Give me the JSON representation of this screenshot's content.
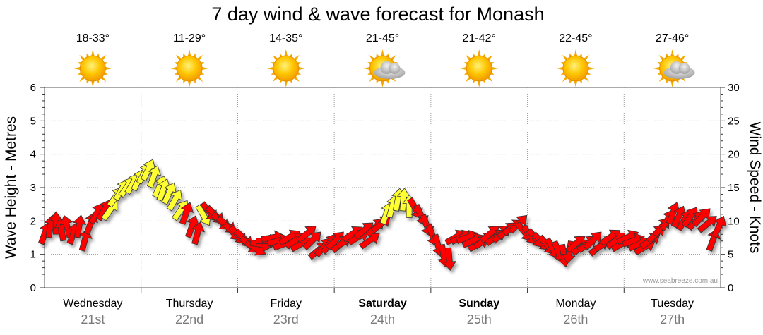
{
  "chart_data": {
    "type": "scatter",
    "title": "7 day wind & wave forecast for Monash",
    "ylabel_left": "Wave Height - Metres",
    "ylabel_right": "Wind Speed - Knots",
    "ylim_left": [
      0,
      6
    ],
    "ylim_right": [
      0,
      30
    ],
    "yticks_left": [
      "0",
      "1",
      "2",
      "3",
      "4",
      "5",
      "6"
    ],
    "yticks_right": [
      "0",
      "5",
      "10",
      "15",
      "20",
      "25",
      "30"
    ],
    "grid": true,
    "credit": "www.seabreeze.com.au",
    "days": [
      {
        "name": "Wednesday",
        "date": "21st",
        "temp": "18-33°",
        "icon": "sun-icon",
        "bold": false
      },
      {
        "name": "Thursday",
        "date": "22nd",
        "temp": "11-29°",
        "icon": "sun-icon",
        "bold": false
      },
      {
        "name": "Friday",
        "date": "23rd",
        "temp": "14-35°",
        "icon": "sun-icon",
        "bold": false
      },
      {
        "name": "Saturday",
        "date": "24th",
        "temp": "21-45°",
        "icon": "sun-cloud-icon",
        "bold": true
      },
      {
        "name": "Sunday",
        "date": "25th",
        "temp": "21-42°",
        "icon": "sun-icon",
        "bold": true
      },
      {
        "name": "Monday",
        "date": "26th",
        "temp": "22-45°",
        "icon": "sun-icon",
        "bold": false
      },
      {
        "name": "Tuesday",
        "date": "27th",
        "temp": "27-46°",
        "icon": "sun-cloud-icon",
        "bold": false
      }
    ],
    "series": [
      {
        "colors": {
          "low": "#ff0000",
          "high": "#ffff33"
        },
        "points": [
          {
            "t": 0.0,
            "v": 1.6,
            "dir": 200,
            "c": "low"
          },
          {
            "t": 0.15,
            "v": 1.8,
            "dir": 190,
            "c": "low"
          },
          {
            "t": 0.3,
            "v": 1.9,
            "dir": 180,
            "c": "low"
          },
          {
            "t": 0.45,
            "v": 1.7,
            "dir": 170,
            "c": "low"
          },
          {
            "t": 0.6,
            "v": 1.8,
            "dir": 165,
            "c": "low"
          },
          {
            "t": 0.75,
            "v": 1.6,
            "dir": 200,
            "c": "low"
          },
          {
            "t": 0.9,
            "v": 1.8,
            "dir": 190,
            "c": "low"
          },
          {
            "t": 1.05,
            "v": 1.4,
            "dir": 195,
            "c": "low"
          },
          {
            "t": 1.2,
            "v": 1.9,
            "dir": 200,
            "c": "low"
          },
          {
            "t": 1.35,
            "v": 2.2,
            "dir": 210,
            "c": "low"
          },
          {
            "t": 1.55,
            "v": 2.3,
            "dir": 210,
            "c": "low"
          },
          {
            "t": 1.7,
            "v": 2.3,
            "dir": 215,
            "c": "high"
          },
          {
            "t": 1.85,
            "v": 2.7,
            "dir": 215,
            "c": "high"
          },
          {
            "t": 2.0,
            "v": 2.9,
            "dir": 210,
            "c": "high"
          },
          {
            "t": 2.15,
            "v": 3.0,
            "dir": 215,
            "c": "high"
          },
          {
            "t": 2.3,
            "v": 3.1,
            "dir": 210,
            "c": "high"
          },
          {
            "t": 2.45,
            "v": 3.2,
            "dir": 205,
            "c": "high"
          },
          {
            "t": 2.6,
            "v": 3.4,
            "dir": 210,
            "c": "high"
          },
          {
            "t": 2.7,
            "v": 3.5,
            "dir": 205,
            "c": "high"
          },
          {
            "t": 2.85,
            "v": 3.3,
            "dir": 200,
            "c": "high"
          },
          {
            "t": 3.0,
            "v": 3.0,
            "dir": 205,
            "c": "high"
          },
          {
            "t": 3.1,
            "v": 2.9,
            "dir": 200,
            "c": "high"
          },
          {
            "t": 3.25,
            "v": 2.8,
            "dir": 205,
            "c": "high"
          },
          {
            "t": 3.4,
            "v": 2.6,
            "dir": 210,
            "c": "high"
          },
          {
            "t": 3.55,
            "v": 2.3,
            "dir": 215,
            "c": "high"
          },
          {
            "t": 3.7,
            "v": 2.2,
            "dir": 200,
            "c": "low"
          },
          {
            "t": 3.85,
            "v": 1.8,
            "dir": 200,
            "c": "low"
          },
          {
            "t": 4.0,
            "v": 1.6,
            "dir": 195,
            "c": "low"
          },
          {
            "t": 4.15,
            "v": 2.2,
            "dir": 330,
            "c": "high"
          },
          {
            "t": 4.3,
            "v": 2.3,
            "dir": 320,
            "c": "low"
          },
          {
            "t": 4.45,
            "v": 2.2,
            "dir": 315,
            "c": "low"
          },
          {
            "t": 4.6,
            "v": 2.0,
            "dir": 310,
            "c": "low"
          },
          {
            "t": 4.75,
            "v": 1.9,
            "dir": 310,
            "c": "low"
          },
          {
            "t": 4.9,
            "v": 1.7,
            "dir": 315,
            "c": "low"
          },
          {
            "t": 5.05,
            "v": 1.6,
            "dir": 320,
            "c": "low"
          },
          {
            "t": 5.2,
            "v": 1.5,
            "dir": 315,
            "c": "low"
          },
          {
            "t": 5.35,
            "v": 1.3,
            "dir": 310,
            "c": "low"
          },
          {
            "t": 5.5,
            "v": 1.2,
            "dir": 300,
            "c": "low"
          },
          {
            "t": 5.65,
            "v": 1.3,
            "dir": 280,
            "c": "low"
          },
          {
            "t": 5.8,
            "v": 1.4,
            "dir": 270,
            "c": "low"
          },
          {
            "t": 5.95,
            "v": 1.5,
            "dir": 260,
            "c": "low"
          },
          {
            "t": 6.1,
            "v": 1.4,
            "dir": 255,
            "c": "low"
          },
          {
            "t": 6.25,
            "v": 1.3,
            "dir": 250,
            "c": "low"
          },
          {
            "t": 6.4,
            "v": 1.5,
            "dir": 240,
            "c": "low"
          },
          {
            "t": 6.55,
            "v": 1.4,
            "dir": 235,
            "c": "low"
          },
          {
            "t": 6.7,
            "v": 1.3,
            "dir": 240,
            "c": "low"
          },
          {
            "t": 6.85,
            "v": 1.6,
            "dir": 230,
            "c": "low"
          },
          {
            "t": 7.0,
            "v": 1.4,
            "dir": 225,
            "c": "low"
          },
          {
            "t": 7.15,
            "v": 1.1,
            "dir": 230,
            "c": "low"
          },
          {
            "t": 7.3,
            "v": 1.2,
            "dir": 220,
            "c": "low"
          },
          {
            "t": 7.45,
            "v": 1.3,
            "dir": 215,
            "c": "low"
          },
          {
            "t": 7.6,
            "v": 1.4,
            "dir": 225,
            "c": "low"
          },
          {
            "t": 7.75,
            "v": 1.3,
            "dir": 230,
            "c": "low"
          },
          {
            "t": 7.9,
            "v": 1.4,
            "dir": 240,
            "c": "low"
          },
          {
            "t": 8.05,
            "v": 1.6,
            "dir": 235,
            "c": "low"
          },
          {
            "t": 8.2,
            "v": 1.5,
            "dir": 240,
            "c": "low"
          },
          {
            "t": 8.35,
            "v": 1.7,
            "dir": 230,
            "c": "low"
          },
          {
            "t": 8.5,
            "v": 1.4,
            "dir": 235,
            "c": "low"
          },
          {
            "t": 8.65,
            "v": 1.8,
            "dir": 225,
            "c": "low"
          },
          {
            "t": 8.8,
            "v": 1.9,
            "dir": 230,
            "c": "low"
          },
          {
            "t": 8.95,
            "v": 2.2,
            "dir": 200,
            "c": "high"
          },
          {
            "t": 9.1,
            "v": 2.4,
            "dir": 195,
            "c": "high"
          },
          {
            "t": 9.25,
            "v": 2.6,
            "dir": 190,
            "c": "high"
          },
          {
            "t": 9.4,
            "v": 2.6,
            "dir": 185,
            "c": "high"
          },
          {
            "t": 9.55,
            "v": 2.4,
            "dir": 180,
            "c": "high"
          },
          {
            "t": 9.7,
            "v": 2.4,
            "dir": 330,
            "c": "low"
          },
          {
            "t": 9.85,
            "v": 2.2,
            "dir": 335,
            "c": "low"
          },
          {
            "t": 10.0,
            "v": 1.9,
            "dir": 340,
            "c": "low"
          },
          {
            "t": 10.15,
            "v": 1.6,
            "dir": 340,
            "c": "low"
          },
          {
            "t": 10.3,
            "v": 1.3,
            "dir": 345,
            "c": "low"
          },
          {
            "t": 10.45,
            "v": 1.0,
            "dir": 350,
            "c": "low"
          },
          {
            "t": 10.6,
            "v": 0.9,
            "dir": 355,
            "c": "low"
          },
          {
            "t": 10.75,
            "v": 1.5,
            "dir": 240,
            "c": "low"
          },
          {
            "t": 10.9,
            "v": 1.5,
            "dir": 245,
            "c": "low"
          },
          {
            "t": 11.05,
            "v": 1.5,
            "dir": 250,
            "c": "low"
          },
          {
            "t": 11.2,
            "v": 1.4,
            "dir": 245,
            "c": "low"
          },
          {
            "t": 11.35,
            "v": 1.3,
            "dir": 240,
            "c": "low"
          },
          {
            "t": 11.5,
            "v": 1.4,
            "dir": 235,
            "c": "low"
          },
          {
            "t": 11.65,
            "v": 1.6,
            "dir": 230,
            "c": "low"
          },
          {
            "t": 11.8,
            "v": 1.5,
            "dir": 235,
            "c": "low"
          },
          {
            "t": 11.95,
            "v": 1.6,
            "dir": 225,
            "c": "low"
          },
          {
            "t": 12.1,
            "v": 1.7,
            "dir": 230,
            "c": "low"
          },
          {
            "t": 12.25,
            "v": 1.8,
            "dir": 235,
            "c": "low"
          },
          {
            "t": 12.4,
            "v": 1.9,
            "dir": 225,
            "c": "low"
          },
          {
            "t": 12.55,
            "v": 1.7,
            "dir": 320,
            "c": "low"
          },
          {
            "t": 12.7,
            "v": 1.6,
            "dir": 325,
            "c": "low"
          },
          {
            "t": 12.85,
            "v": 1.5,
            "dir": 320,
            "c": "low"
          },
          {
            "t": 13.0,
            "v": 1.4,
            "dir": 315,
            "c": "low"
          },
          {
            "t": 13.15,
            "v": 1.3,
            "dir": 320,
            "c": "low"
          },
          {
            "t": 13.3,
            "v": 1.2,
            "dir": 330,
            "c": "low"
          },
          {
            "t": 13.45,
            "v": 1.1,
            "dir": 340,
            "c": "low"
          },
          {
            "t": 13.6,
            "v": 1.0,
            "dir": 350,
            "c": "low"
          },
          {
            "t": 13.75,
            "v": 1.1,
            "dir": 10,
            "c": "low"
          },
          {
            "t": 13.9,
            "v": 1.3,
            "dir": 230,
            "c": "low"
          },
          {
            "t": 14.05,
            "v": 1.2,
            "dir": 235,
            "c": "low"
          },
          {
            "t": 14.2,
            "v": 1.3,
            "dir": 230,
            "c": "low"
          },
          {
            "t": 14.35,
            "v": 1.4,
            "dir": 225,
            "c": "low"
          },
          {
            "t": 14.5,
            "v": 1.2,
            "dir": 230,
            "c": "low"
          },
          {
            "t": 14.65,
            "v": 1.3,
            "dir": 240,
            "c": "low"
          },
          {
            "t": 14.8,
            "v": 1.5,
            "dir": 235,
            "c": "low"
          },
          {
            "t": 14.95,
            "v": 1.4,
            "dir": 230,
            "c": "low"
          },
          {
            "t": 15.1,
            "v": 1.3,
            "dir": 240,
            "c": "low"
          },
          {
            "t": 15.25,
            "v": 1.5,
            "dir": 245,
            "c": "low"
          },
          {
            "t": 15.4,
            "v": 1.4,
            "dir": 250,
            "c": "low"
          },
          {
            "t": 15.55,
            "v": 1.3,
            "dir": 245,
            "c": "low"
          },
          {
            "t": 15.7,
            "v": 1.2,
            "dir": 240,
            "c": "low"
          },
          {
            "t": 15.85,
            "v": 1.4,
            "dir": 235,
            "c": "low"
          },
          {
            "t": 16.0,
            "v": 1.6,
            "dir": 225,
            "c": "low"
          },
          {
            "t": 16.15,
            "v": 1.8,
            "dir": 220,
            "c": "low"
          },
          {
            "t": 16.3,
            "v": 2.0,
            "dir": 210,
            "c": "low"
          },
          {
            "t": 16.45,
            "v": 2.2,
            "dir": 200,
            "c": "low"
          },
          {
            "t": 16.6,
            "v": 2.1,
            "dir": 205,
            "c": "low"
          },
          {
            "t": 16.75,
            "v": 2.0,
            "dir": 210,
            "c": "low"
          },
          {
            "t": 16.9,
            "v": 2.1,
            "dir": 215,
            "c": "low"
          },
          {
            "t": 17.05,
            "v": 2.0,
            "dir": 220,
            "c": "low"
          },
          {
            "t": 17.2,
            "v": 2.1,
            "dir": 225,
            "c": "low"
          },
          {
            "t": 17.35,
            "v": 1.9,
            "dir": 230,
            "c": "low"
          },
          {
            "t": 17.5,
            "v": 1.4,
            "dir": 200,
            "c": "low"
          },
          {
            "t": 17.65,
            "v": 1.8,
            "dir": 205,
            "c": "low"
          }
        ]
      }
    ]
  }
}
